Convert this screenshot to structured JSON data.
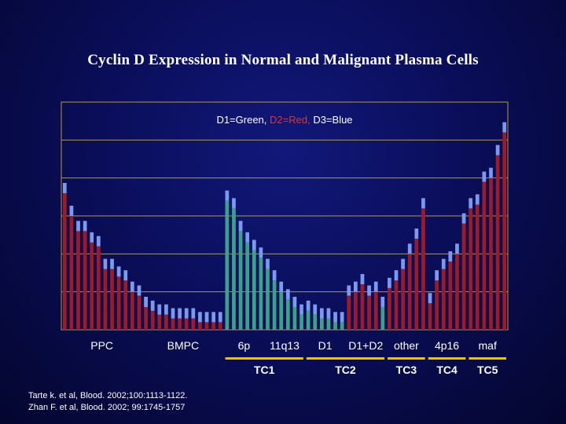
{
  "title": "Cyclin D Expression in Normal and Malignant Plasma Cells",
  "colors": {
    "background": "#0a0e5a",
    "red": "#9e1a24",
    "green": "#3aa385",
    "blue": "#7a9af0",
    "grid": "#b59a3a",
    "text": "#ffffff",
    "legend_blue": "#7fa6ff",
    "legend_red": "#d23a3a"
  },
  "chart_data": {
    "type": "bar",
    "title": "",
    "ylim": [
      0,
      6
    ],
    "grid": true,
    "legend": {
      "placement": "top-center",
      "parts": [
        {
          "text": "D1=Green, ",
          "color": "text"
        },
        {
          "text": "D2=Red, ",
          "color": "legend_red"
        },
        {
          "text": "D3=Blue",
          "color": "text"
        }
      ]
    },
    "categories": [
      "PPC",
      "BMPC",
      "6p",
      "11q13",
      "D1",
      "D1+D2",
      "other",
      "4p16",
      "maf"
    ],
    "groups": [
      {
        "label": "TC1",
        "spans": [
          "6p",
          "11q13"
        ]
      },
      {
        "label": "TC2",
        "spans": [
          "D1",
          "D1+D2"
        ]
      },
      {
        "label": "TC3",
        "spans": [
          "other"
        ]
      },
      {
        "label": "TC4",
        "spans": [
          "4p16"
        ]
      },
      {
        "label": "TC5",
        "spans": [
          "maf"
        ]
      }
    ],
    "samples": [
      {
        "g": "PPC",
        "v": 3.6,
        "c": "red"
      },
      {
        "g": "PPC",
        "v": 3.0,
        "c": "red"
      },
      {
        "g": "PPC",
        "v": 2.6,
        "c": "red"
      },
      {
        "g": "PPC",
        "v": 2.6,
        "c": "red"
      },
      {
        "g": "PPC",
        "v": 2.3,
        "c": "red"
      },
      {
        "g": "PPC",
        "v": 2.2,
        "c": "red"
      },
      {
        "g": "PPC",
        "v": 1.6,
        "c": "red"
      },
      {
        "g": "PPC",
        "v": 1.6,
        "c": "red"
      },
      {
        "g": "PPC",
        "v": 1.4,
        "c": "red"
      },
      {
        "g": "PPC",
        "v": 1.3,
        "c": "red"
      },
      {
        "g": "PPC",
        "v": 1.0,
        "c": "red"
      },
      {
        "g": "PPC",
        "v": 0.9,
        "c": "red"
      },
      {
        "g": "BMPC",
        "v": 0.6,
        "c": "red"
      },
      {
        "g": "BMPC",
        "v": 0.5,
        "c": "red"
      },
      {
        "g": "BMPC",
        "v": 0.4,
        "c": "red"
      },
      {
        "g": "BMPC",
        "v": 0.4,
        "c": "red"
      },
      {
        "g": "BMPC",
        "v": 0.3,
        "c": "red"
      },
      {
        "g": "BMPC",
        "v": 0.3,
        "c": "red"
      },
      {
        "g": "BMPC",
        "v": 0.3,
        "c": "red"
      },
      {
        "g": "BMPC",
        "v": 0.3,
        "c": "red"
      },
      {
        "g": "BMPC",
        "v": 0.2,
        "c": "red"
      },
      {
        "g": "BMPC",
        "v": 0.2,
        "c": "red"
      },
      {
        "g": "BMPC",
        "v": 0.2,
        "c": "red"
      },
      {
        "g": "BMPC",
        "v": 0.2,
        "c": "red"
      },
      {
        "g": "6p",
        "v": 3.4,
        "c": "green"
      },
      {
        "g": "6p",
        "v": 3.2,
        "c": "green"
      },
      {
        "g": "6p",
        "v": 2.6,
        "c": "green"
      },
      {
        "g": "6p",
        "v": 2.3,
        "c": "green"
      },
      {
        "g": "6p",
        "v": 2.1,
        "c": "green"
      },
      {
        "g": "6p",
        "v": 1.9,
        "c": "green"
      },
      {
        "g": "11q13",
        "v": 1.6,
        "c": "green"
      },
      {
        "g": "11q13",
        "v": 1.3,
        "c": "green"
      },
      {
        "g": "11q13",
        "v": 1.0,
        "c": "green"
      },
      {
        "g": "11q13",
        "v": 0.8,
        "c": "green"
      },
      {
        "g": "11q13",
        "v": 0.6,
        "c": "green"
      },
      {
        "g": "11q13",
        "v": 0.4,
        "c": "green"
      },
      {
        "g": "D1",
        "v": 0.5,
        "c": "green"
      },
      {
        "g": "D1",
        "v": 0.4,
        "c": "green"
      },
      {
        "g": "D1",
        "v": 0.3,
        "c": "green"
      },
      {
        "g": "D1",
        "v": 0.3,
        "c": "green"
      },
      {
        "g": "D1",
        "v": 0.2,
        "c": "green"
      },
      {
        "g": "D1",
        "v": 0.2,
        "c": "green"
      },
      {
        "g": "D1+D2",
        "v": 0.9,
        "c": "red"
      },
      {
        "g": "D1+D2",
        "v": 1.0,
        "c": "red"
      },
      {
        "g": "D1+D2",
        "v": 1.2,
        "c": "red"
      },
      {
        "g": "D1+D2",
        "v": 0.9,
        "c": "red"
      },
      {
        "g": "D1+D2",
        "v": 1.0,
        "c": "red"
      },
      {
        "g": "D1+D2",
        "v": 0.6,
        "c": "green"
      },
      {
        "g": "other",
        "v": 1.1,
        "c": "red"
      },
      {
        "g": "other",
        "v": 1.3,
        "c": "red"
      },
      {
        "g": "other",
        "v": 1.6,
        "c": "red"
      },
      {
        "g": "other",
        "v": 2.0,
        "c": "red"
      },
      {
        "g": "other",
        "v": 2.4,
        "c": "red"
      },
      {
        "g": "other",
        "v": 3.2,
        "c": "red"
      },
      {
        "g": "4p16",
        "v": 0.7,
        "c": "red"
      },
      {
        "g": "4p16",
        "v": 1.3,
        "c": "red"
      },
      {
        "g": "4p16",
        "v": 1.6,
        "c": "red"
      },
      {
        "g": "4p16",
        "v": 1.8,
        "c": "red"
      },
      {
        "g": "4p16",
        "v": 2.0,
        "c": "red"
      },
      {
        "g": "4p16",
        "v": 2.8,
        "c": "red"
      },
      {
        "g": "maf",
        "v": 3.2,
        "c": "red"
      },
      {
        "g": "maf",
        "v": 3.3,
        "c": "red"
      },
      {
        "g": "maf",
        "v": 3.9,
        "c": "red"
      },
      {
        "g": "maf",
        "v": 4.0,
        "c": "red"
      },
      {
        "g": "maf",
        "v": 4.6,
        "c": "red"
      },
      {
        "g": "maf",
        "v": 5.2,
        "c": "red"
      }
    ]
  },
  "references": [
    "Tarte k. et al, Blood. 2002;100:1113-1122.",
    "Zhan F. et al, Blood. 2002; 99:1745-1757"
  ]
}
